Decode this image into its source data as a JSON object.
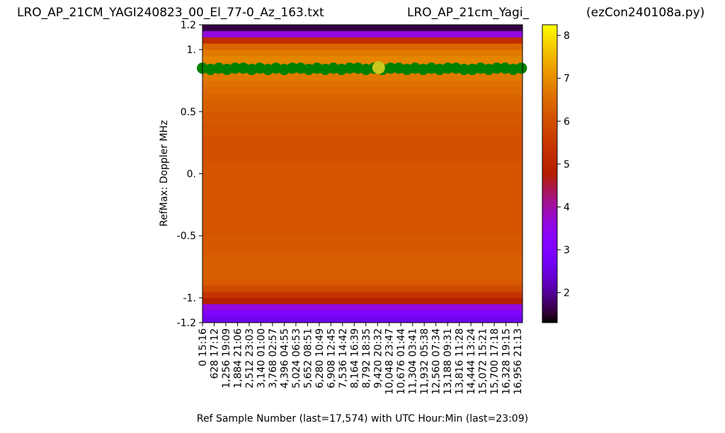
{
  "chart_data": {
    "type": "heatmap",
    "title_left": "LRO_AP_21CM_YAGI240823_00_El_77-0_Az_163.txt",
    "title_center": "LRO_AP_21cm_Yagi_",
    "title_right": "(ezCon240108a.py)",
    "ylabel": "RefMax:  Doppler MHz",
    "xlabel": "Ref Sample Number (last=17,574) with UTC Hour:Min (last=23:09)",
    "xlim": [
      0,
      17220
    ],
    "ylim": [
      -1.2,
      1.2
    ],
    "yticks": [
      -1.2,
      {
        "value": -1,
        "label": "-1."
      },
      -0.5,
      {
        "value": 0,
        "label": "0."
      },
      0.5,
      {
        "value": 1,
        "label": "1."
      },
      1.2
    ],
    "xticks": [
      {
        "value": 0,
        "label": "0  15:16"
      },
      {
        "value": 628,
        "label": "628  17:12"
      },
      {
        "value": 1256,
        "label": "1,256  19:09"
      },
      {
        "value": 1884,
        "label": "1,884  21:06"
      },
      {
        "value": 2512,
        "label": "2,512  23:03"
      },
      {
        "value": 3140,
        "label": "3,140  01:00"
      },
      {
        "value": 3768,
        "label": "3,768  02:57"
      },
      {
        "value": 4396,
        "label": "4,396  04:55"
      },
      {
        "value": 5024,
        "label": "5,024  06:53"
      },
      {
        "value": 5652,
        "label": "5,652  08:51"
      },
      {
        "value": 6280,
        "label": "6,280  10:49"
      },
      {
        "value": 6908,
        "label": "6,908  12:45"
      },
      {
        "value": 7536,
        "label": "7,536  14:42"
      },
      {
        "value": 8164,
        "label": "8,164  16:39"
      },
      {
        "value": 8792,
        "label": "8,792  18:35"
      },
      {
        "value": 9420,
        "label": "9,420  20:32"
      },
      {
        "value": 10048,
        "label": "10,048  23:47"
      },
      {
        "value": 10676,
        "label": "10,676  01:44"
      },
      {
        "value": 11304,
        "label": "11,304  03:41"
      },
      {
        "value": 11932,
        "label": "11,932  05:38"
      },
      {
        "value": 12560,
        "label": "12,560  07:34"
      },
      {
        "value": 13188,
        "label": "13,188  09:31"
      },
      {
        "value": 13816,
        "label": "13,816  11:28"
      },
      {
        "value": 14444,
        "label": "14,444  13:24"
      },
      {
        "value": 15072,
        "label": "15,072  15:21"
      },
      {
        "value": 15700,
        "label": "15,700  17:18"
      },
      {
        "value": 16328,
        "label": "16,328  19:15"
      },
      {
        "value": 16956,
        "label": "16,956  21:13"
      }
    ],
    "colormap": "gnuplot",
    "clim": [
      1.3,
      8.25
    ],
    "cbar_ticks": [
      2,
      3,
      4,
      5,
      6,
      7,
      8
    ],
    "values": [
      2.6,
      3.0,
      3.6,
      4.8,
      5.4,
      5.9,
      6.2,
      6.3,
      6.3,
      6.3,
      6.3,
      6.2,
      6.2,
      6.2,
      6.1,
      6.1,
      6.1,
      6.1,
      6.1,
      6.1,
      6.1,
      6.1,
      6.1,
      6.1,
      6.1,
      6.1,
      6.0,
      6.0,
      6.0,
      6.0,
      6.1,
      6.1,
      6.2,
      6.2,
      6.3,
      6.3,
      6.4,
      6.5,
      6.6,
      6.7,
      6.8,
      6.9,
      6.9,
      6.7,
      6.4,
      5.2,
      3.6,
      1.6
    ],
    "points": {
      "color": "#008000",
      "x": [
        0,
        440,
        880,
        1320,
        1760,
        2200,
        2640,
        3080,
        3520,
        3960,
        4400,
        4840,
        5280,
        5720,
        6160,
        6600,
        7040,
        7480,
        7920,
        8360,
        8800,
        9240,
        9680,
        10120,
        10560,
        11000,
        11440,
        11880,
        12320,
        12760,
        13200,
        13640,
        14080,
        14520,
        14960,
        15400,
        15840,
        16280,
        16720,
        17160
      ],
      "y": [
        0.85,
        0.84,
        0.85,
        0.84,
        0.85,
        0.85,
        0.84,
        0.85,
        0.84,
        0.85,
        0.84,
        0.85,
        0.85,
        0.84,
        0.85,
        0.84,
        0.85,
        0.84,
        0.85,
        0.85,
        0.84,
        0.85,
        0.84,
        0.85,
        0.85,
        0.84,
        0.85,
        0.84,
        0.85,
        0.84,
        0.85,
        0.85,
        0.84,
        0.84,
        0.85,
        0.84,
        0.85,
        0.85,
        0.84,
        0.85
      ]
    },
    "marker": {
      "color": "#c8c81e",
      "x": 9480,
      "y": 0.855
    }
  }
}
